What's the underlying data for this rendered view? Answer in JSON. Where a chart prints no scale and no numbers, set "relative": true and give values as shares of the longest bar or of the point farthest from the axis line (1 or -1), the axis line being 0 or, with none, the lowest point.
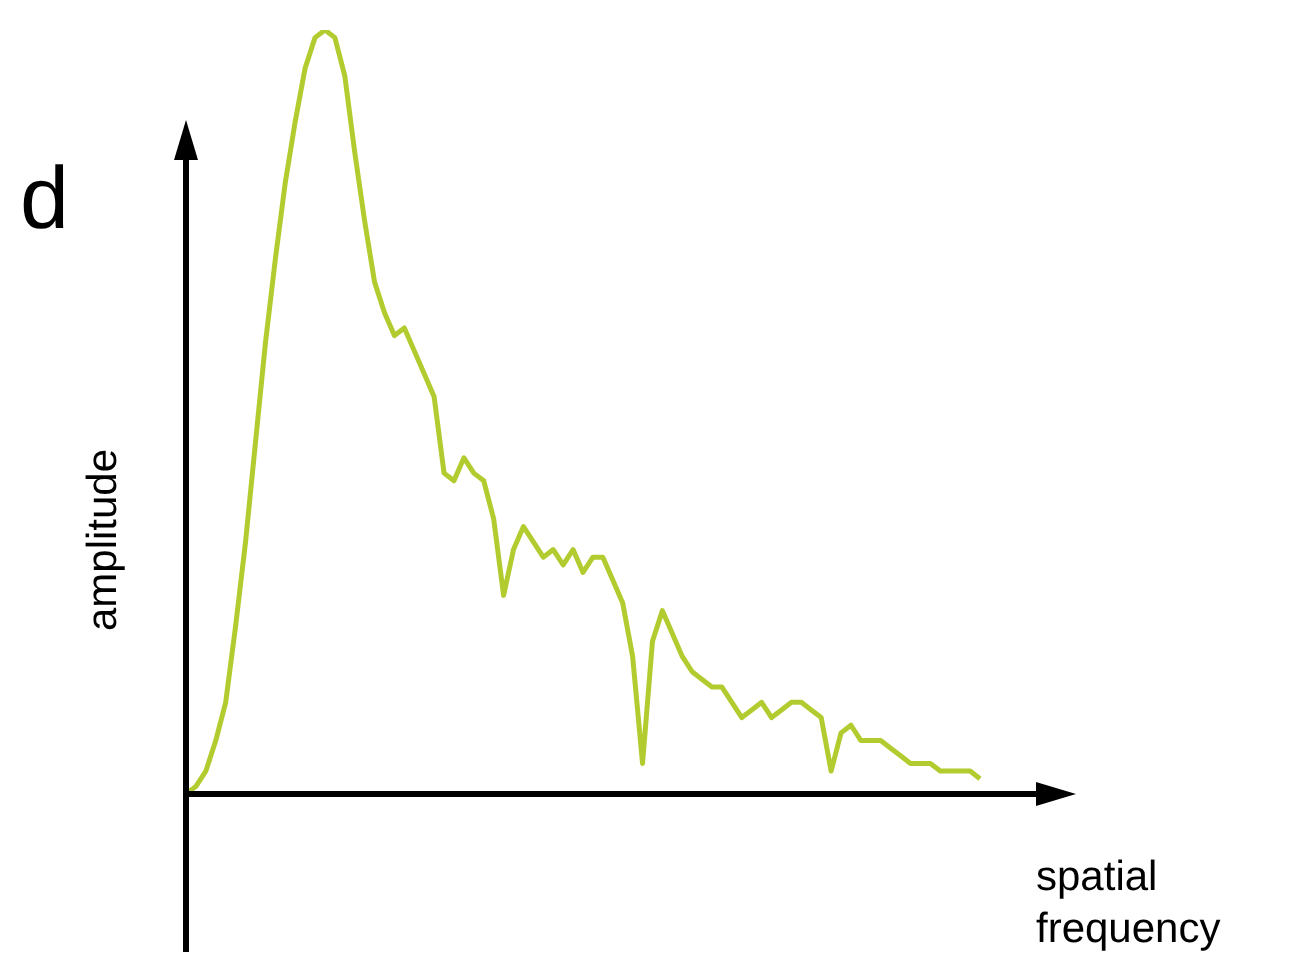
{
  "chart_data": {
    "type": "line",
    "relative": true,
    "xlabel": "spatial\nfrequency",
    "ylabel": "amplitude",
    "annotations": [
      "d"
    ],
    "color": "#b2cc30",
    "categories": [
      null,
      null,
      null,
      null,
      null,
      null,
      null,
      null,
      null,
      null,
      null,
      null,
      null,
      null,
      null,
      null,
      null,
      null,
      null,
      null,
      null,
      null,
      null,
      null,
      null,
      null,
      null,
      null,
      null,
      null,
      null,
      null,
      null,
      null,
      null,
      null,
      null,
      null,
      null,
      null,
      null,
      null,
      null,
      null,
      null,
      null,
      null,
      null,
      null,
      null,
      null,
      null,
      null,
      null,
      null,
      null,
      null,
      null,
      null,
      null,
      null,
      null,
      null,
      null,
      null,
      null,
      null,
      null,
      null,
      null,
      null,
      null,
      null,
      null,
      null,
      null,
      null,
      null,
      null,
      null,
      null
    ],
    "values": [
      0,
      0.01,
      0.03,
      0.07,
      0.12,
      0.22,
      0.33,
      0.46,
      0.59,
      0.7,
      0.8,
      0.88,
      0.95,
      0.99,
      1,
      0.99,
      0.94,
      0.84,
      0.75,
      0.67,
      0.63,
      0.6,
      0.61,
      0.58,
      0.55,
      0.52,
      0.42,
      0.41,
      0.44,
      0.42,
      0.41,
      0.36,
      0.26,
      0.32,
      0.35,
      0.33,
      0.31,
      0.32,
      0.3,
      0.32,
      0.29,
      0.31,
      0.31,
      0.28,
      0.25,
      0.18,
      0.04,
      0.2,
      0.24,
      0.21,
      0.18,
      0.16,
      0.15,
      0.14,
      0.14,
      0.12,
      0.1,
      0.11,
      0.12,
      0.1,
      0.11,
      0.12,
      0.12,
      0.11,
      0.1,
      0.03,
      0.08,
      0.09,
      0.07,
      0.07,
      0.07,
      0.06,
      0.05,
      0.04,
      0.04,
      0.04,
      0.03,
      0.03,
      0.03,
      0.03,
      0.02
    ]
  }
}
